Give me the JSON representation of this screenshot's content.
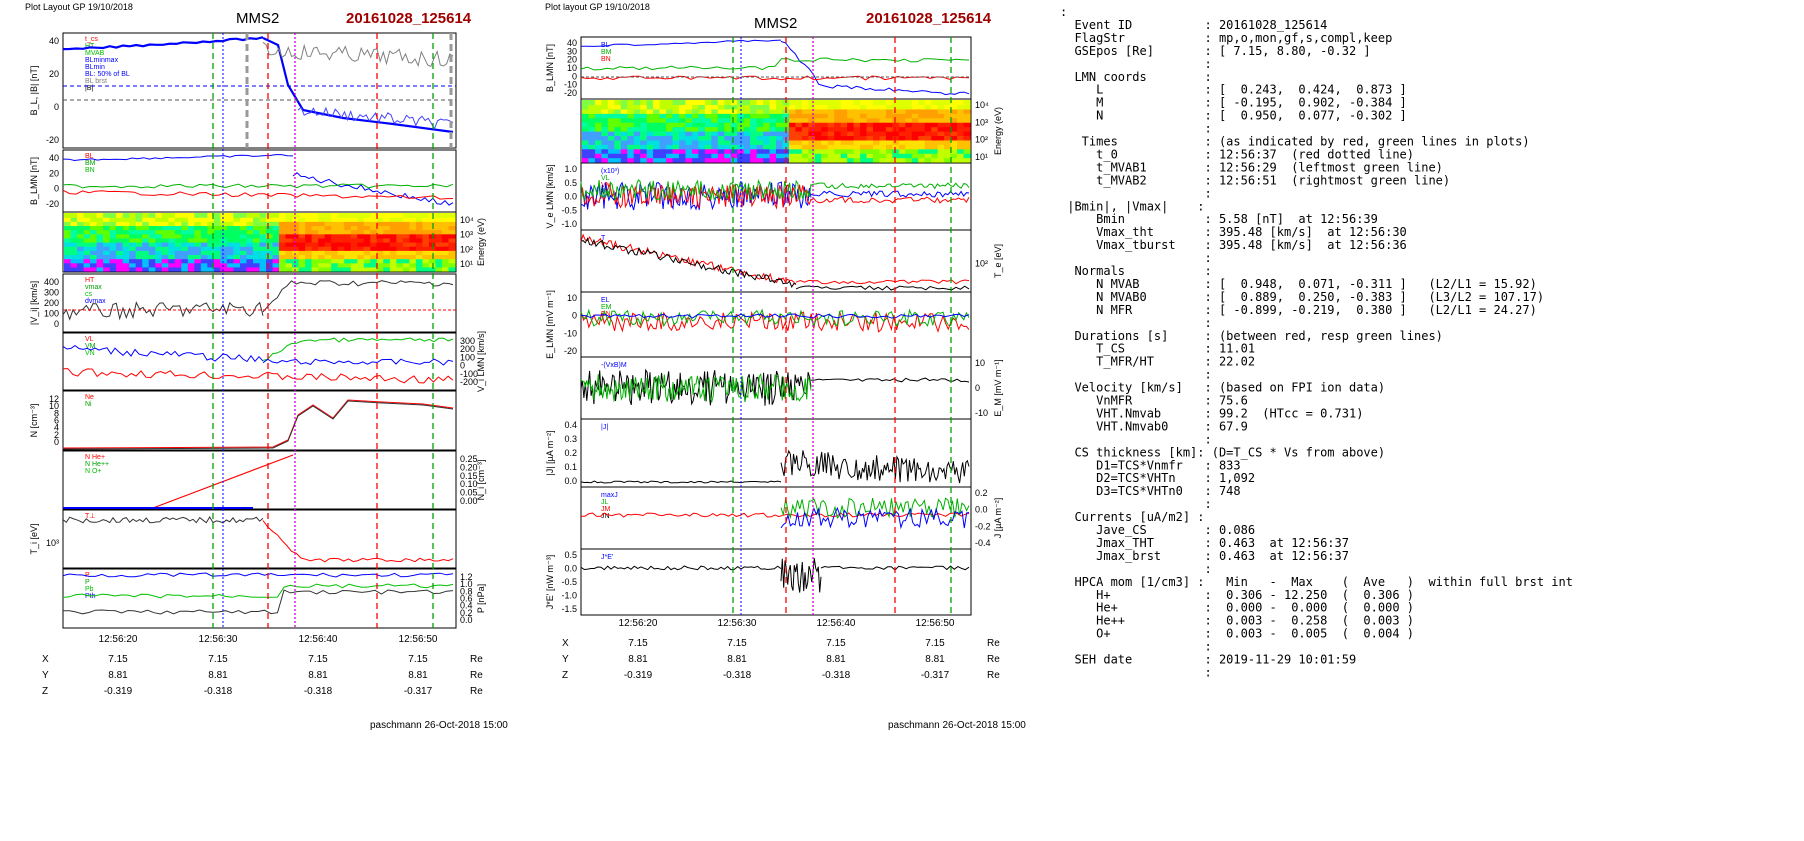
{
  "left_panel": {
    "header": "Plot Layout GP 19/10/2018",
    "spacecraft": "MMS2",
    "event_id": "20161028_125614",
    "footer": "paschmann 26-Oct-2018 15:00",
    "time_ticks": [
      "12:56:20",
      "12:56:30",
      "12:56:40",
      "12:56:50"
    ],
    "panels": [
      {
        "ylabel": "B_L, |B| [nT]",
        "ticks": [
          "40",
          "20",
          "0",
          "-20"
        ],
        "legend": [
          "t_cs",
          "HT",
          "MVAB",
          "BLminmax",
          "BLmin",
          "BL: 50% of BL",
          "BL brst",
          "|B|"
        ]
      },
      {
        "ylabel": "B_LMN [nT]",
        "ticks": [
          "40",
          "20",
          "0",
          "-20"
        ],
        "legend": [
          "BL",
          "BM",
          "BN"
        ]
      },
      {
        "ylabel": "Energy (eV)",
        "ticks": [
          "10⁴",
          "10³",
          "10²",
          "10¹"
        ],
        "legend": []
      },
      {
        "ylabel": "|V_i| [km/s]",
        "ticks": [
          "400",
          "300",
          "200",
          "100",
          "0"
        ],
        "legend": [
          "HT",
          "vmax",
          "cs",
          "dvmax"
        ]
      },
      {
        "ylabel": "V_i LMN [km/s]",
        "ticks": [
          "300",
          "200",
          "100",
          "0",
          "-100",
          "-200"
        ],
        "legend": [
          "VL",
          "VM",
          "VN"
        ]
      },
      {
        "ylabel": "N [cm⁻³]",
        "ticks": [
          "12",
          "10",
          "8",
          "6",
          "4",
          "2",
          "0"
        ],
        "legend": [
          "Ne",
          "Ni"
        ]
      },
      {
        "ylabel": "N_i [cm⁻³]",
        "ticks": [
          "0.25",
          "0.20",
          "0.15",
          "0.10",
          "0.05",
          "0.00"
        ],
        "legend": [
          "N He+",
          "N He++",
          "N O+"
        ]
      },
      {
        "ylabel": "T_i [eV]",
        "ticks": [
          "10³"
        ],
        "legend": [
          "T⊥"
        ]
      },
      {
        "ylabel": "P [nPa]",
        "ticks": [
          "1.2",
          "1.0",
          "0.8",
          "0.6",
          "0.4",
          "0.2",
          "0.0"
        ],
        "legend": [
          "P",
          "P",
          "Pb",
          "Pth"
        ]
      }
    ],
    "position_rows": [
      {
        "label": "X",
        "values": [
          "7.15",
          "7.15",
          "7.15",
          "7.15"
        ],
        "unit": "Re"
      },
      {
        "label": "Y",
        "values": [
          "8.81",
          "8.81",
          "8.81",
          "8.81"
        ],
        "unit": "Re"
      },
      {
        "label": "Z",
        "values": [
          "-0.319",
          "-0.318",
          "-0.318",
          "-0.317"
        ],
        "unit": "Re"
      }
    ]
  },
  "right_panel": {
    "header": "Plot layout GP 19/10/2018",
    "spacecraft": "MMS2",
    "event_id": "20161028_125614",
    "footer": "paschmann 26-Oct-2018 15:00",
    "time_ticks": [
      "12:56:20",
      "12:56:30",
      "12:56:40",
      "12:56:50"
    ],
    "panels": [
      {
        "ylabel": "B_LMN [nT]",
        "ticks": [
          "40",
          "30",
          "20",
          "10",
          "0",
          "-10",
          "-20"
        ],
        "legend": [
          "BL",
          "BM",
          "BN"
        ]
      },
      {
        "ylabel": "Energy (eV)",
        "ticks": [
          "10⁴",
          "10³",
          "10²",
          "10¹"
        ],
        "legend": []
      },
      {
        "ylabel": "V_e LMN [km/s]",
        "ticks": [
          "1.0",
          "0.5",
          "0.0",
          "-0.5",
          "-1.0"
        ],
        "legend": [
          "(x10³)",
          "VL",
          "VM",
          "VN"
        ]
      },
      {
        "ylabel": "T_e [eV]",
        "ticks": [
          "10²"
        ],
        "legend": [
          "T",
          "T"
        ]
      },
      {
        "ylabel": "E_LMN [mV m⁻¹]",
        "ticks": [
          "10",
          "0",
          "-10",
          "-20"
        ],
        "legend": [
          "EL",
          "EM",
          "EN"
        ]
      },
      {
        "ylabel": "E_M [mV m⁻¹]",
        "ticks": [
          "10",
          "0",
          "-10"
        ],
        "legend": [
          "-(VxB)M"
        ]
      },
      {
        "ylabel": "|J| [µA m⁻²]",
        "ticks": [
          "0.4",
          "0.3",
          "0.2",
          "0.1",
          "0.0"
        ],
        "legend": [
          "|J|"
        ]
      },
      {
        "ylabel": "J [µA m⁻²]",
        "ticks": [
          "0.2",
          "0.0",
          "-0.2",
          "-0.4"
        ],
        "legend": [
          "maxJ",
          "JL",
          "JM",
          "JN"
        ]
      },
      {
        "ylabel": "J*E' [nW m⁻³]",
        "ticks": [
          "0.5",
          "0.0",
          "-0.5",
          "-1.0",
          "-1.5"
        ],
        "legend": [
          "J*E'"
        ]
      }
    ],
    "position_rows": [
      {
        "label": "X",
        "values": [
          "7.15",
          "7.15",
          "7.15",
          "7.15"
        ],
        "unit": "Re"
      },
      {
        "label": "Y",
        "values": [
          "8.81",
          "8.81",
          "8.81",
          "8.81"
        ],
        "unit": "Re"
      },
      {
        "label": "Z",
        "values": [
          "-0.319",
          "-0.318",
          "-0.318",
          "-0.317"
        ],
        "unit": "Re"
      }
    ]
  },
  "summary": {
    "lines": [
      ":",
      "  Event ID          : 20161028_125614",
      "  FlagStr           : mp,o,mon,gf,s,compl,keep",
      "  GSEpos [Re]       : [ 7.15, 8.80, -0.32 ]",
      "                    :",
      "  LMN coords        :",
      "     L              : [  0.243,  0.424,  0.873 ]",
      "     M              : [ -0.195,  0.902, -0.384 ]",
      "     N              : [  0.950,  0.077, -0.302 ]",
      "                    :",
      "   Times            : (as indicated by red, green lines in plots)",
      "     t_0            : 12:56:37  (red dotted line)",
      "     t_MVAB1        : 12:56:29  (leftmost green line)",
      "     t_MVAB2        : 12:56:51  (rightmost green line)",
      "                    :",
      " |Bmin|, |Vmax|    :",
      "     Bmin           : 5.58 [nT]  at 12:56:39",
      "     Vmax_tht       : 395.48 [km/s]  at 12:56:30",
      "     Vmax_tburst    : 395.48 [km/s]  at 12:56:36",
      "                    :",
      "  Normals           :",
      "     N MVAB         : [  0.948,  0.071, -0.311 ]   (L2/L1 = 15.92)",
      "     N MVAB0        : [  0.889,  0.250, -0.383 ]   (L3/L2 = 107.17)",
      "     N MFR          : [ -0.899, -0.219,  0.380 ]   (L2/L1 = 24.27)",
      "                    :",
      "  Durations [s]     : (between red, resp green lines)",
      "     T_CS           : 11.01",
      "     T_MFR/HT       : 22.02",
      "                    :",
      "  Velocity [km/s]   : (based on FPI ion data)",
      "     VnMFR          : 75.6",
      "     VHT.Nmvab      : 99.2  (HTcc = 0.731)",
      "     VHT.Nmvab0     : 67.9",
      "                    :",
      "  CS thickness [km]: (D=T_CS * Vs from above)",
      "     D1=TCS*Vnmfr   : 833",
      "     D2=TCS*VHTn    : 1,092",
      "     D3=TCS*VHTn0   : 748",
      "                    :",
      "  Currents [uA/m2] :",
      "     Jave_CS        : 0.086",
      "     Jmax_THT       : 0.463  at 12:56:37",
      "     Jmax_brst      : 0.463  at 12:56:37",
      "                    :",
      "  HPCA mom [1/cm3] :   Min   -  Max    (  Ave   )  within full brst int",
      "     H+             :  0.306 - 12.250  (  0.306 )",
      "     He+            :  0.000 -  0.000  (  0.000 )",
      "     He++           :  0.003 -  0.258  (  0.003 )",
      "     O+             :  0.003 -  0.005  (  0.004 )",
      "                    :",
      "  SEH date          : 2019-11-29 10:01:59",
      "                    :"
    ]
  },
  "chart_data": [
    {
      "type": "line",
      "title": "MMS2",
      "x": [
        "12:56:14",
        "12:56:20",
        "12:56:26",
        "12:56:30",
        "12:56:34",
        "12:56:36",
        "12:56:37",
        "12:56:40",
        "12:56:45",
        "12:56:50",
        "12:56:54"
      ],
      "series": [
        {
          "name": "BL",
          "values": [
            32,
            34,
            37,
            40,
            40,
            25,
            8,
            -10,
            -14,
            -18,
            -21
          ]
        },
        {
          "name": "|B|",
          "values": [
            32,
            34,
            37,
            40,
            41,
            36,
            20,
            22,
            25,
            28,
            30
          ]
        }
      ],
      "ylabel": "B_L, |B| [nT]",
      "ylim": [
        -30,
        45
      ]
    },
    {
      "type": "line",
      "title": "MMS2",
      "x": [
        "12:56:14",
        "12:56:20",
        "12:56:26",
        "12:56:30",
        "12:56:34",
        "12:56:36",
        "12:56:37",
        "12:56:40",
        "12:56:45",
        "12:56:50",
        "12:56:54"
      ],
      "series": [
        {
          "name": "|J|",
          "values": [
            0.01,
            0.01,
            0.01,
            0.01,
            0.05,
            0.25,
            0.43,
            0.2,
            0.15,
            0.1,
            0.05
          ]
        }
      ],
      "ylabel": "|J| [µA m⁻²]",
      "ylim": [
        0,
        0.45
      ]
    }
  ]
}
